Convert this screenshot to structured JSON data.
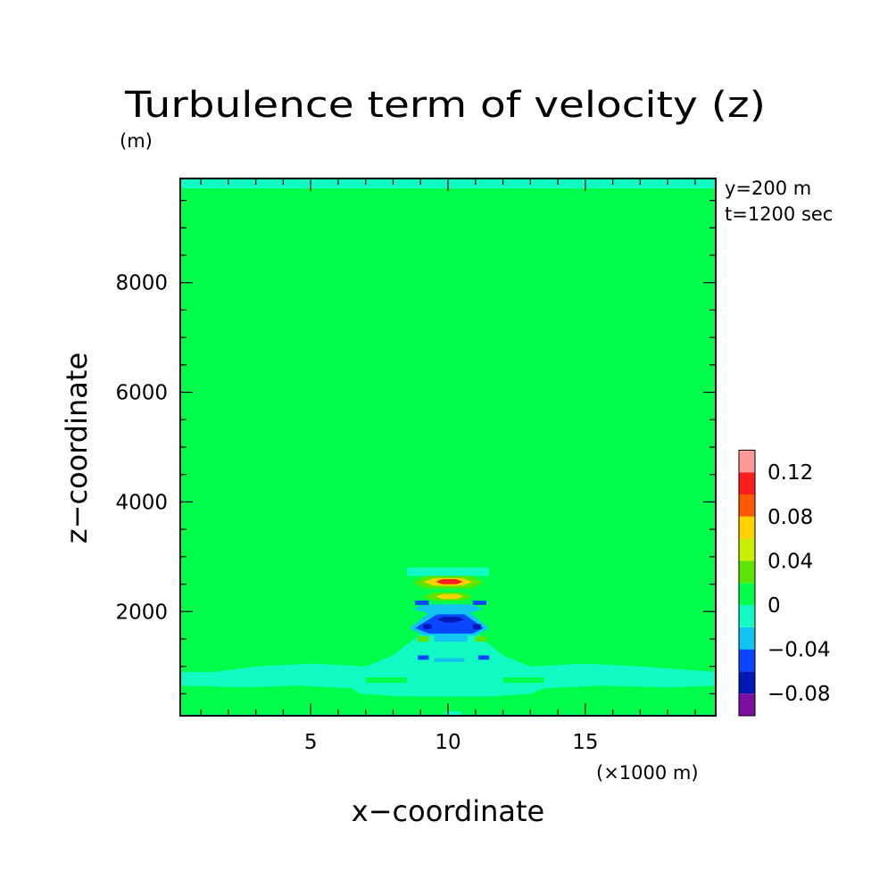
{
  "chart_data": {
    "type": "heatmap",
    "title": "Turbulence term of velocity (z)",
    "ylabel": "z−coordinate",
    "yunit": "(m)",
    "xlabel": "x−coordinate",
    "xunit": "(×1000 m)",
    "annotations": [
      "y=200 m",
      "t=1200 sec"
    ],
    "x_ticks": [
      {
        "value": 5,
        "label": "5"
      },
      {
        "value": 10,
        "label": "10"
      },
      {
        "value": 15,
        "label": "15"
      }
    ],
    "y_ticks": [
      {
        "value": 2000,
        "label": "2000"
      },
      {
        "value": 4000,
        "label": "4000"
      },
      {
        "value": 6000,
        "label": "6000"
      },
      {
        "value": 8000,
        "label": "8000"
      }
    ],
    "xlim": [
      0.25,
      19.75
    ],
    "ylim": [
      100,
      9900
    ],
    "colorbar": {
      "labels": [
        {
          "value": 0.12,
          "label": "0.12"
        },
        {
          "value": 0.08,
          "label": "0.08"
        },
        {
          "value": 0.04,
          "label": "0.04"
        },
        {
          "value": 0,
          "label": "0"
        },
        {
          "value": -0.04,
          "label": "−0.04"
        },
        {
          "value": -0.08,
          "label": "−0.08"
        }
      ],
      "levels": [
        {
          "range": [
            -0.1,
            -0.08
          ],
          "color": "#7b0fa0"
        },
        {
          "range": [
            -0.08,
            -0.06
          ],
          "color": "#0018b4"
        },
        {
          "range": [
            -0.06,
            -0.04
          ],
          "color": "#0a46ff"
        },
        {
          "range": [
            -0.04,
            -0.02
          ],
          "color": "#12c4f0"
        },
        {
          "range": [
            -0.02,
            0
          ],
          "color": "#12fac4"
        },
        {
          "range": [
            0,
            0.02
          ],
          "color": "#00ff4a"
        },
        {
          "range": [
            0.02,
            0.04
          ],
          "color": "#5ae600"
        },
        {
          "range": [
            0.04,
            0.06
          ],
          "color": "#c8f000"
        },
        {
          "range": [
            0.06,
            0.08
          ],
          "color": "#ffd200"
        },
        {
          "range": [
            0.08,
            0.1
          ],
          "color": "#ff5a00"
        },
        {
          "range": [
            0.1,
            0.12
          ],
          "color": "#ff1e1e"
        },
        {
          "range": [
            0.12,
            0.14
          ],
          "color": "#ff9a96"
        }
      ]
    },
    "background_level_color": "#00ff4a",
    "regions": [
      {
        "color": "#12fac4",
        "points": [
          [
            0.25,
            9900
          ],
          [
            19.75,
            9900
          ],
          [
            19.75,
            9720
          ],
          [
            0.25,
            9720
          ]
        ]
      },
      {
        "color": "#12fac4",
        "points": [
          [
            0.25,
            900
          ],
          [
            1.5,
            900
          ],
          [
            3,
            1000
          ],
          [
            5,
            1050
          ],
          [
            7,
            1000
          ],
          [
            8,
            1200
          ],
          [
            8.5,
            1400
          ],
          [
            9.2,
            1650
          ],
          [
            9.6,
            1750
          ],
          [
            10.1,
            1800
          ],
          [
            10.6,
            1750
          ],
          [
            11,
            1650
          ],
          [
            11.5,
            1400
          ],
          [
            12,
            1200
          ],
          [
            13,
            1000
          ],
          [
            15,
            1050
          ],
          [
            17,
            1000
          ],
          [
            19.75,
            900
          ],
          [
            19.75,
            650
          ],
          [
            18,
            620
          ],
          [
            15.5,
            650
          ],
          [
            13.5,
            600
          ],
          [
            13,
            500
          ],
          [
            11.5,
            450
          ],
          [
            8.5,
            450
          ],
          [
            6.8,
            500
          ],
          [
            6.5,
            600
          ],
          [
            4.5,
            650
          ],
          [
            2.5,
            620
          ],
          [
            0.25,
            650
          ]
        ]
      },
      {
        "color": "#12fac4",
        "points": [
          [
            8.5,
            2800
          ],
          [
            11.5,
            2800
          ],
          [
            11.5,
            2650
          ],
          [
            8.5,
            2650
          ]
        ]
      },
      {
        "color": "#5ae600",
        "points": [
          [
            9.2,
            2650
          ],
          [
            10.8,
            2650
          ],
          [
            11.3,
            2520
          ],
          [
            10.8,
            2420
          ],
          [
            9.2,
            2420
          ],
          [
            8.7,
            2520
          ]
        ]
      },
      {
        "color": "#ffd200",
        "points": [
          [
            9.5,
            2610
          ],
          [
            10.5,
            2610
          ],
          [
            10.9,
            2540
          ],
          [
            10.5,
            2470
          ],
          [
            9.5,
            2470
          ],
          [
            9.1,
            2540
          ]
        ]
      },
      {
        "color": "#ff1e1e",
        "points": [
          [
            9.8,
            2590
          ],
          [
            10.3,
            2590
          ],
          [
            10.55,
            2545
          ],
          [
            10.3,
            2500
          ],
          [
            9.8,
            2500
          ],
          [
            9.55,
            2545
          ]
        ]
      },
      {
        "color": "#5ae600",
        "points": [
          [
            9.5,
            2350
          ],
          [
            10.5,
            2350
          ],
          [
            10.9,
            2270
          ],
          [
            10.5,
            2200
          ],
          [
            9.5,
            2200
          ],
          [
            9.1,
            2270
          ]
        ]
      },
      {
        "color": "#ffd200",
        "points": [
          [
            9.8,
            2320
          ],
          [
            10.3,
            2320
          ],
          [
            10.55,
            2275
          ],
          [
            10.3,
            2230
          ],
          [
            9.8,
            2230
          ],
          [
            9.55,
            2275
          ]
        ]
      },
      {
        "color": "#12c4f0",
        "points": [
          [
            9.2,
            2130
          ],
          [
            10.8,
            2130
          ],
          [
            11.3,
            2050
          ],
          [
            10.8,
            1980
          ],
          [
            9.2,
            1980
          ],
          [
            8.7,
            2050
          ]
        ]
      },
      {
        "color": "#12c4f0",
        "points": [
          [
            9.3,
            1980
          ],
          [
            10.8,
            1980
          ],
          [
            11.5,
            1700
          ],
          [
            11,
            1560
          ],
          [
            9.1,
            1560
          ],
          [
            8.6,
            1700
          ]
        ]
      },
      {
        "color": "#0a46ff",
        "points": [
          [
            9.6,
            1950
          ],
          [
            10.6,
            1950
          ],
          [
            11.3,
            1700
          ],
          [
            10.9,
            1600
          ],
          [
            9.3,
            1600
          ],
          [
            8.8,
            1700
          ]
        ]
      },
      {
        "color": "#0018b4",
        "points": [
          [
            9.8,
            1900
          ],
          [
            10.4,
            1900
          ],
          [
            10.6,
            1850
          ],
          [
            10.2,
            1800
          ],
          [
            9.9,
            1800
          ],
          [
            9.6,
            1850
          ]
        ]
      },
      {
        "color": "#0a46ff",
        "points": [
          [
            8.8,
            2200
          ],
          [
            9.3,
            2200
          ],
          [
            9.3,
            2120
          ],
          [
            8.8,
            2120
          ]
        ]
      },
      {
        "color": "#0a46ff",
        "points": [
          [
            10.9,
            2200
          ],
          [
            11.4,
            2200
          ],
          [
            11.4,
            2120
          ],
          [
            10.9,
            2120
          ]
        ]
      },
      {
        "color": "#0018b4",
        "points": [
          [
            9.1,
            1770
          ],
          [
            9.4,
            1770
          ],
          [
            9.4,
            1680
          ],
          [
            9.1,
            1680
          ]
        ]
      },
      {
        "color": "#0018b4",
        "points": [
          [
            10.9,
            1770
          ],
          [
            11.2,
            1770
          ],
          [
            11.2,
            1680
          ],
          [
            10.9,
            1680
          ]
        ]
      },
      {
        "color": "#12c4f0",
        "points": [
          [
            9.5,
            1580
          ],
          [
            10.7,
            1580
          ],
          [
            10.7,
            1450
          ],
          [
            9.5,
            1450
          ]
        ]
      },
      {
        "color": "#5ae600",
        "points": [
          [
            8.9,
            1550
          ],
          [
            9.3,
            1550
          ],
          [
            9.3,
            1450
          ],
          [
            8.9,
            1450
          ]
        ]
      },
      {
        "color": "#5ae600",
        "points": [
          [
            11.0,
            1550
          ],
          [
            11.4,
            1550
          ],
          [
            11.4,
            1450
          ],
          [
            11.0,
            1450
          ]
        ]
      },
      {
        "color": "#0a46ff",
        "points": [
          [
            8.9,
            1200
          ],
          [
            9.3,
            1200
          ],
          [
            9.3,
            1120
          ],
          [
            8.9,
            1120
          ]
        ]
      },
      {
        "color": "#0a46ff",
        "points": [
          [
            11.1,
            1200
          ],
          [
            11.5,
            1200
          ],
          [
            11.5,
            1120
          ],
          [
            11.1,
            1120
          ]
        ]
      },
      {
        "color": "#12c4f0",
        "points": [
          [
            9.5,
            1150
          ],
          [
            10.6,
            1150
          ],
          [
            10.6,
            1080
          ],
          [
            9.5,
            1080
          ]
        ]
      },
      {
        "color": "#00ff4a",
        "points": [
          [
            7.0,
            800
          ],
          [
            8.5,
            800
          ],
          [
            8.5,
            700
          ],
          [
            7.0,
            700
          ]
        ]
      },
      {
        "color": "#00ff4a",
        "points": [
          [
            12.0,
            800
          ],
          [
            13.5,
            800
          ],
          [
            13.5,
            700
          ],
          [
            12.0,
            700
          ]
        ]
      },
      {
        "color": "#12fac4",
        "points": [
          [
            9.9,
            180
          ],
          [
            10.5,
            180
          ],
          [
            10.5,
            100
          ],
          [
            9.9,
            100
          ]
        ]
      }
    ]
  }
}
